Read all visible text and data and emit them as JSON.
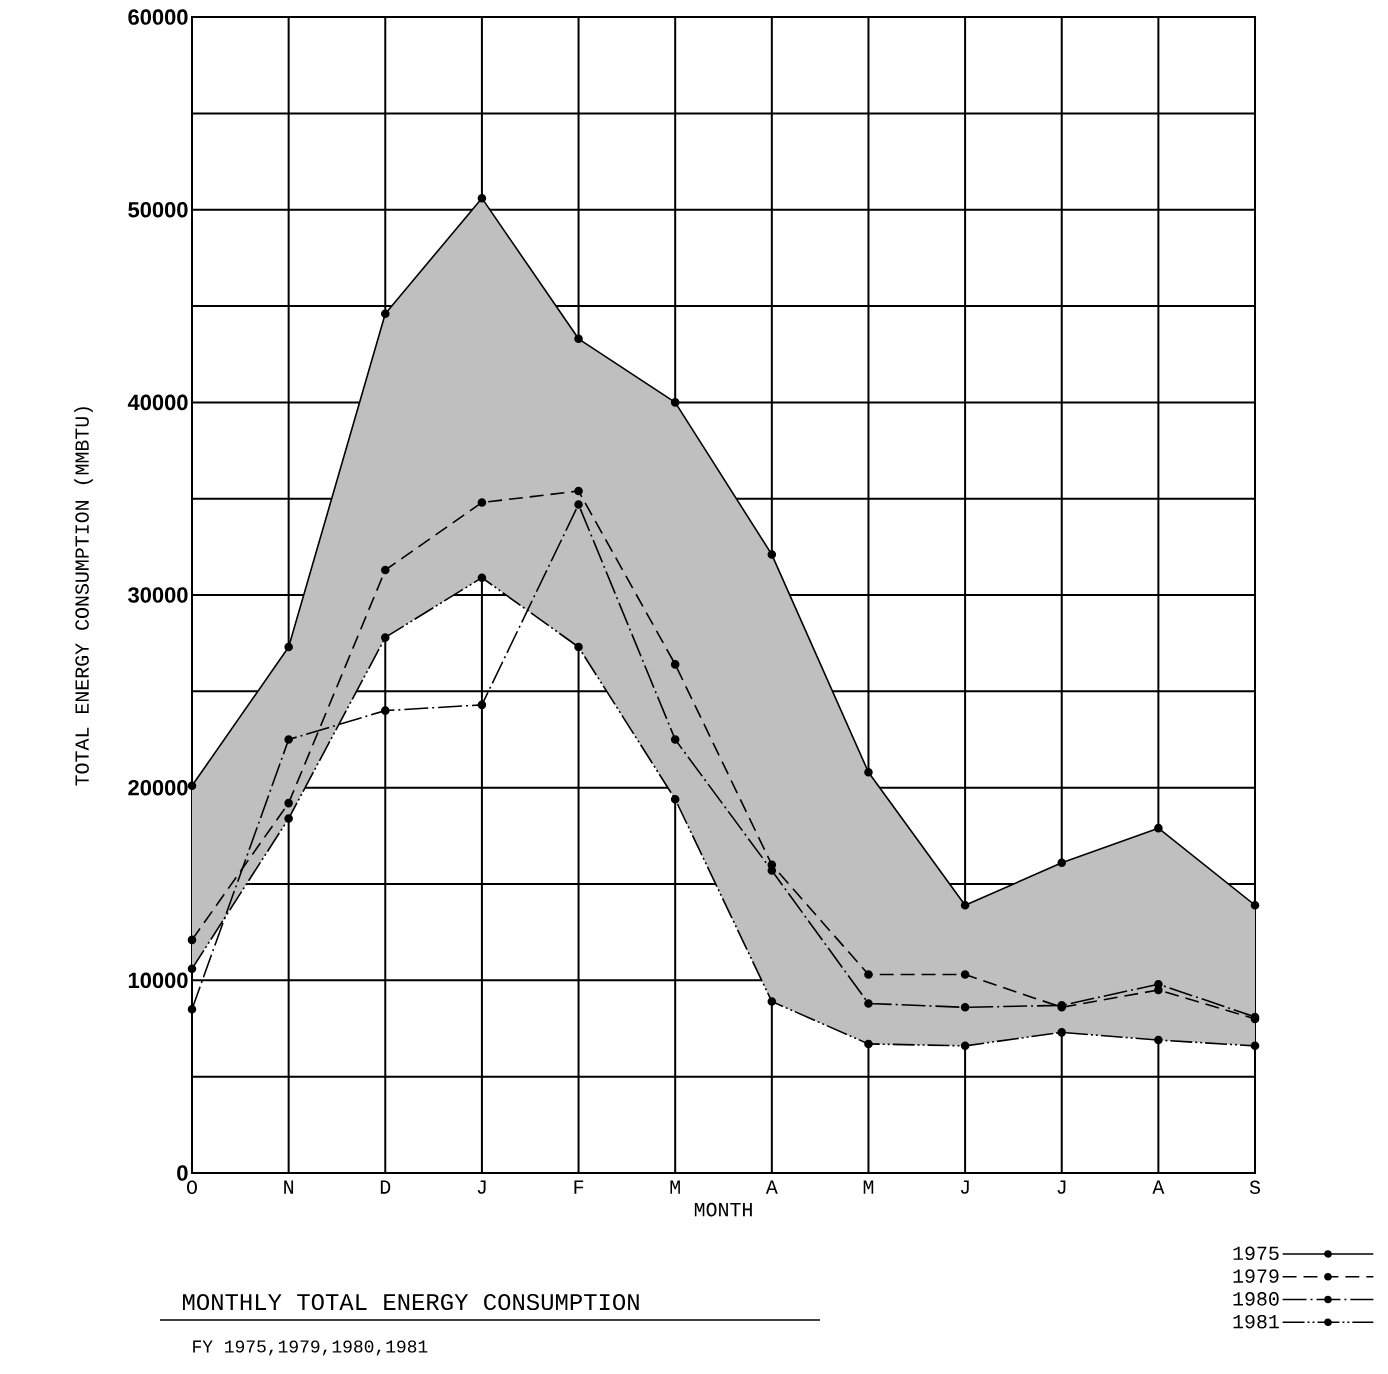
{
  "chart_data": {
    "type": "line",
    "title": "MONTHLY TOTAL ENERGY CONSUMPTION",
    "subtitle": "FY 1975,1979,1980,1981",
    "xlabel": "MONTH",
    "ylabel": "TOTAL ENERGY CONSUMPTION (MMBTU)",
    "categories": [
      "O",
      "N",
      "D",
      "J",
      "F",
      "M",
      "A",
      "M",
      "J",
      "J",
      "A",
      "S"
    ],
    "series": [
      {
        "name": "1975",
        "color": "#000000",
        "line_style": "solid",
        "values": [
          20100,
          27300,
          44600,
          50600,
          43300,
          40000,
          32100,
          20800,
          13900,
          16100,
          17900,
          13900
        ],
        "upper": [
          20100,
          27300,
          44600,
          50600,
          43300,
          40000,
          32100,
          20800,
          13900,
          16100,
          17900,
          13900
        ],
        "lower": [
          10600,
          18400,
          27800,
          30900,
          27300,
          19400,
          8900,
          6700,
          6600,
          7300,
          6900,
          6600
        ]
      },
      {
        "name": "1979",
        "color": "#000000",
        "line_style": "dashed",
        "values": [
          12100,
          19200,
          31300,
          34800,
          35400,
          26400,
          16000,
          10300,
          10300,
          8600,
          9500,
          8000
        ]
      },
      {
        "name": "1980",
        "color": "#000000",
        "line_style": "dashdot",
        "values": [
          8500,
          22500,
          24000,
          24300,
          34700,
          22500,
          15700,
          8800,
          8600,
          8700,
          9800,
          8100
        ]
      },
      {
        "name": "1981",
        "color": "#000000",
        "line_style": "dashdotdot",
        "values": [
          10600,
          18400,
          27800,
          30900,
          27300,
          19400,
          8900,
          6700,
          6600,
          7300,
          6900,
          6600
        ]
      }
    ],
    "ylim": [
      0,
      60000
    ],
    "yticks": [
      0,
      {
        "value": 5000,
        "label": null
      },
      10000,
      {
        "value": 15000,
        "label": null
      },
      20000,
      {
        "value": 25000,
        "label": null
      },
      30000,
      {
        "value": 35000,
        "label": null
      },
      40000,
      {
        "value": 45000,
        "label": null
      },
      50000,
      {
        "value": 55000,
        "label": null
      },
      60000
    ],
    "grid": true,
    "legend": "bottom right",
    "marker": "circle"
  }
}
